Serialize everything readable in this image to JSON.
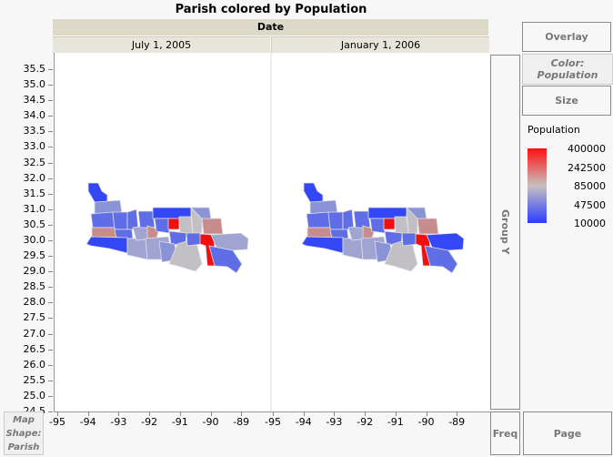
{
  "chart_data": {
    "type": "map",
    "title": "Parish colored by Population",
    "group_x_label": "Date",
    "panels": [
      "July 1, 2005",
      "January 1, 2006"
    ],
    "xlim": [
      -95,
      -88.5
    ],
    "ylim": [
      24.5,
      35.8
    ],
    "xticks": [
      "-95",
      "-94",
      "-93",
      "-92",
      "-91",
      "-90",
      "-89"
    ],
    "yticks": [
      "35.5",
      "35.0",
      "34.5",
      "34.0",
      "33.5",
      "33.0",
      "32.5",
      "32.0",
      "31.5",
      "31.0",
      "30.5",
      "30.0",
      "29.5",
      "29.0",
      "28.5",
      "28.0",
      "27.5",
      "27.0",
      "26.5",
      "26.0",
      "25.5",
      "25.0",
      "24.5"
    ],
    "legend": {
      "title": "Population",
      "values": [
        "400000",
        "242500",
        "85000",
        "47500",
        "10000"
      ],
      "colors": [
        "#ff0000",
        "#d9a0a0",
        "#c0c0c0",
        "#8e96d8",
        "#2a3cff"
      ]
    }
  },
  "controls": {
    "overlay": "Overlay",
    "color": "Color: Population",
    "size": "Size",
    "group_y": "Group Y",
    "freq": "Freq",
    "page": "Page",
    "map_shape": "Map Shape: Parish"
  }
}
